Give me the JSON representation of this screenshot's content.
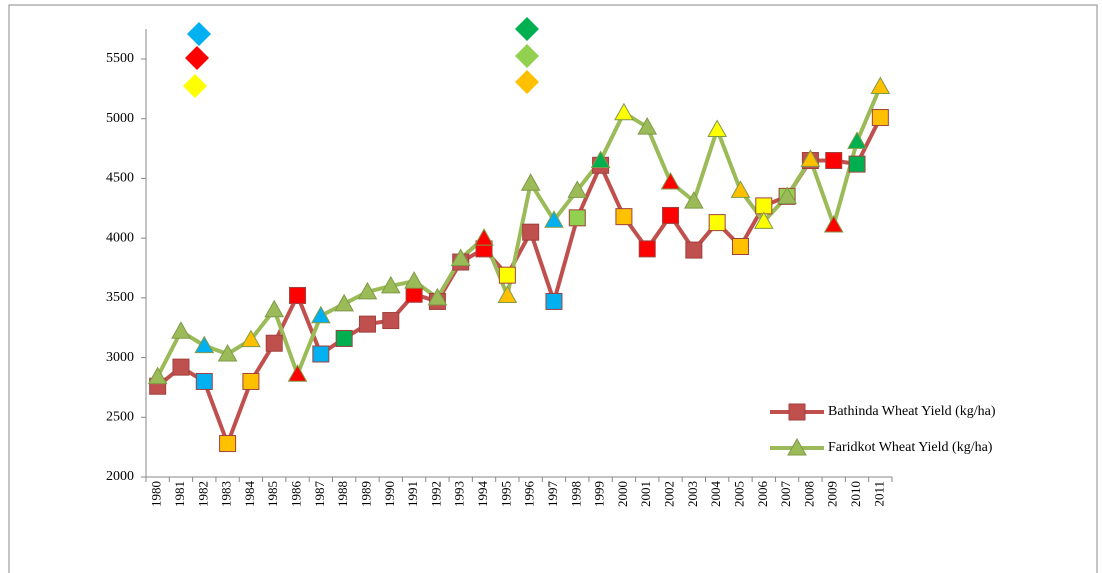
{
  "chart_data": {
    "type": "line",
    "categories": [
      "1980",
      "1981",
      "1982",
      "1983",
      "1984",
      "1985",
      "1986",
      "1987",
      "1988",
      "1989",
      "1990",
      "1991",
      "1992",
      "1993",
      "1994",
      "1995",
      "1996",
      "1997",
      "1998",
      "1999",
      "2000",
      "2001",
      "2002",
      "2003",
      "2004",
      "2005",
      "2006",
      "2007",
      "2008",
      "2009",
      "2010",
      "2011"
    ],
    "series": [
      {
        "name": "Bathinda Wheat Yield (kg/ha)",
        "color": "#c0504d",
        "marker": "square",
        "values": [
          2760,
          2920,
          2800,
          2280,
          2800,
          3120,
          3520,
          3030,
          3160,
          3280,
          3310,
          3530,
          3470,
          3800,
          3910,
          3690,
          4050,
          3470,
          4170,
          4610,
          4180,
          3910,
          4190,
          3900,
          4130,
          3930,
          4270,
          4350,
          4650,
          4650,
          4620,
          5010
        ],
        "marker_colors": [
          "#c0504d",
          "#c0504d",
          "#00b0f0",
          "#ffc000",
          "#ffc000",
          "#c0504d",
          "#ff0000",
          "#00b0f0",
          "#00b050",
          "#c0504d",
          "#c0504d",
          "#ff0000",
          "#c0504d",
          "#c0504d",
          "#ff0000",
          "#ffff00",
          "#c0504d",
          "#00b0f0",
          "#92d050",
          "#c0504d",
          "#ffc000",
          "#ff0000",
          "#ff0000",
          "#c0504d",
          "#ffff00",
          "#ffc000",
          "#ffff00",
          "#92d050",
          "#c0504d",
          "#ff0000",
          "#00b050",
          "#ffc000"
        ]
      },
      {
        "name": "Faridkot Wheat Yield (kg/ha)",
        "color": "#9bbb59",
        "marker": "triangle",
        "values": [
          2840,
          3220,
          3100,
          3030,
          3150,
          3400,
          2860,
          3350,
          3450,
          3550,
          3600,
          3640,
          3500,
          3830,
          4000,
          3520,
          4460,
          4150,
          4400,
          4650,
          5050,
          4930,
          4470,
          4310,
          4910,
          4400,
          4140,
          4350,
          4660,
          4110,
          4810,
          5270
        ],
        "marker_colors": [
          "#9bbb59",
          "#9bbb59",
          "#00b0f0",
          "#9bbb59",
          "#ffc000",
          "#9bbb59",
          "#ff0000",
          "#00b0f0",
          "#9bbb59",
          "#9bbb59",
          "#9bbb59",
          "#9bbb59",
          "#9bbb59",
          "#9bbb59",
          "#ff0000",
          "#ffc000",
          "#9bbb59",
          "#00b0f0",
          "#9bbb59",
          "#00b050",
          "#ffff00",
          "#9bbb59",
          "#ff0000",
          "#9bbb59",
          "#ffff00",
          "#ffc000",
          "#ffff00",
          "#9bbb59",
          "#ffc000",
          "#ff0000",
          "#00b050",
          "#ffc000"
        ]
      }
    ],
    "ylim": [
      2000,
      5500
    ],
    "yticks": [
      2000,
      2500,
      3000,
      3500,
      4000,
      4500,
      5000,
      5500
    ],
    "legend": "lower right"
  }
}
